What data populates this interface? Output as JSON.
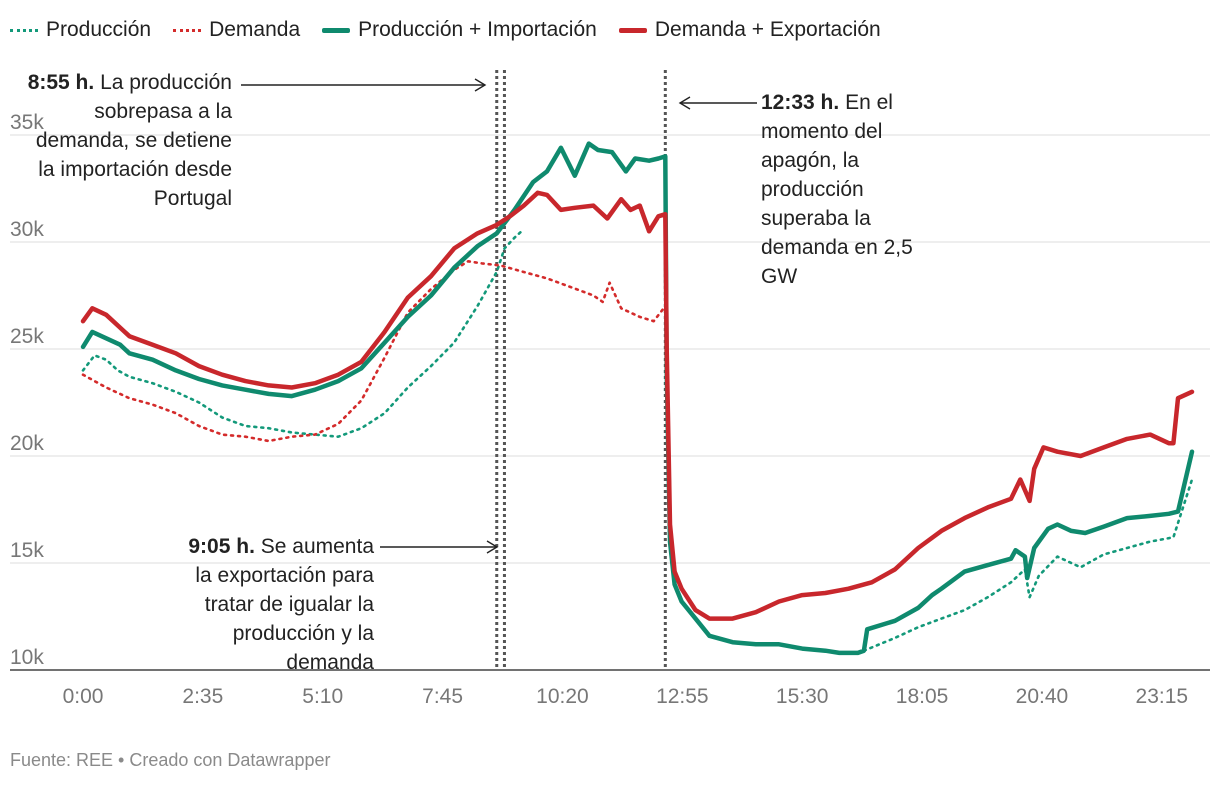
{
  "legend": [
    {
      "label": "Producción",
      "color": "#13997a",
      "style": "dotted"
    },
    {
      "label": "Demanda",
      "color": "#d42b2b",
      "style": "dotted"
    },
    {
      "label": "Producción + Importación",
      "color": "#0f8a6e",
      "style": "solid"
    },
    {
      "label": "Demanda + Exportación",
      "color": "#c8272c",
      "style": "solid"
    }
  ],
  "annotations": {
    "a855": {
      "time": "8:55 h.",
      "text": "La producción sobrepasa a la demanda, se detiene la importación desde Portugal"
    },
    "a905": {
      "time": "9:05 h.",
      "text": "Se aumenta la exportación para tratar de igualar la producción y la demanda"
    },
    "a1233": {
      "time": "12:33 h.",
      "text": "En el momento del apagón, la producción superaba la demanda en 2,5 GW"
    }
  },
  "source": "Fuente: REE • Creado con Datawrapper",
  "chart_data": {
    "type": "line",
    "title": "",
    "xlabel": "",
    "ylabel": "",
    "x_unit": "hours",
    "xlim": [
      0,
      24
    ],
    "ylim": [
      10000,
      35000
    ],
    "y_ticks": [
      {
        "value": 10000,
        "label": "10k"
      },
      {
        "value": 15000,
        "label": "15k"
      },
      {
        "value": 20000,
        "label": "20k"
      },
      {
        "value": 25000,
        "label": "25k"
      },
      {
        "value": 30000,
        "label": "30k"
      },
      {
        "value": 35000,
        "label": "35k"
      }
    ],
    "x_ticks": [
      {
        "value": 0,
        "label": "0:00"
      },
      {
        "value": 2.583,
        "label": "2:35"
      },
      {
        "value": 5.167,
        "label": "5:10"
      },
      {
        "value": 7.75,
        "label": "7:45"
      },
      {
        "value": 10.333,
        "label": "10:20"
      },
      {
        "value": 12.917,
        "label": "12:55"
      },
      {
        "value": 15.5,
        "label": "15:30"
      },
      {
        "value": 18.083,
        "label": "18:05"
      },
      {
        "value": 20.667,
        "label": "20:40"
      },
      {
        "value": 23.25,
        "label": "23:15"
      }
    ],
    "reference_lines": [
      {
        "x": 8.917,
        "label": "8:55"
      },
      {
        "x": 9.083,
        "label": "9:05"
      },
      {
        "x": 12.55,
        "label": "12:33"
      }
    ],
    "series": [
      {
        "name": "Producción",
        "color": "#13997a",
        "style": "dotted",
        "x": [
          0,
          0.25,
          0.5,
          0.75,
          1,
          1.5,
          2,
          2.5,
          3,
          3.5,
          4,
          4.5,
          5,
          5.5,
          6,
          6.5,
          7,
          7.5,
          8,
          8.5,
          8.917,
          9.083,
          9.3,
          9.5
        ],
        "y": [
          24000,
          24700,
          24500,
          24000,
          23700,
          23400,
          23000,
          22500,
          21800,
          21400,
          21300,
          21100,
          21000,
          20900,
          21300,
          22000,
          23200,
          24200,
          25300,
          27000,
          28600,
          29700,
          30200,
          30600
        ]
      },
      {
        "name": "Producción",
        "color": "#13997a",
        "style": "dotted",
        "x": [
          16.83,
          17.5,
          18,
          18.5,
          19,
          19.5,
          20,
          20.3,
          20.4,
          20.6,
          21,
          21.5,
          22,
          22.5,
          23,
          23.5,
          23.9
        ],
        "y": [
          10900,
          11500,
          12000,
          12400,
          12800,
          13400,
          14100,
          14700,
          13400,
          14400,
          15300,
          14800,
          15400,
          15700,
          16000,
          16200,
          18900
        ]
      },
      {
        "name": "Demanda",
        "color": "#d42b2b",
        "style": "dotted",
        "x": [
          0,
          0.5,
          1,
          1.5,
          2,
          2.5,
          3,
          3.5,
          4,
          4.5,
          5,
          5.5,
          6,
          6.5,
          7,
          7.5,
          8,
          8.3,
          8.6,
          9,
          9.5,
          10,
          10.5,
          11,
          11.2,
          11.35,
          11.6,
          12,
          12.3,
          12.55
        ],
        "y": [
          23800,
          23200,
          22700,
          22400,
          22000,
          21400,
          21000,
          20900,
          20700,
          20900,
          21000,
          21500,
          22600,
          24600,
          26700,
          27800,
          28700,
          29100,
          29000,
          28900,
          28600,
          28300,
          27900,
          27500,
          27200,
          28100,
          26900,
          26500,
          26300,
          27000
        ]
      },
      {
        "name": "Producción + Importación",
        "color": "#0f8a6e",
        "style": "solid",
        "x": [
          0,
          0.2,
          0.5,
          0.8,
          1,
          1.5,
          2,
          2.5,
          3,
          3.5,
          4,
          4.5,
          5,
          5.5,
          6,
          6.5,
          7,
          7.5,
          8,
          8.5,
          8.917,
          9.3,
          9.7,
          10,
          10.3,
          10.6,
          10.9,
          11.1,
          11.4,
          11.7,
          11.9,
          12.2,
          12.4,
          12.55,
          12.58,
          12.65,
          12.75,
          12.9,
          13.2,
          13.5,
          14,
          14.5,
          15,
          15.5,
          16,
          16.3,
          16.5,
          16.7,
          16.83,
          16.9,
          17.5,
          18,
          18.3,
          18.5,
          19,
          19.5,
          20,
          20.1,
          20.3,
          20.35,
          20.5,
          20.8,
          21,
          21.3,
          21.6,
          22,
          22.5,
          23,
          23.4,
          23.6,
          23.9
        ],
        "y": [
          25100,
          25800,
          25500,
          25200,
          24800,
          24500,
          24000,
          23600,
          23300,
          23100,
          22900,
          22800,
          23100,
          23500,
          24100,
          25300,
          26500,
          27500,
          28800,
          29800,
          30400,
          31500,
          32800,
          33300,
          34400,
          33100,
          34600,
          34300,
          34200,
          33300,
          33900,
          33800,
          33900,
          34000,
          24000,
          16000,
          14000,
          13200,
          12400,
          11600,
          11300,
          11200,
          11200,
          11000,
          10900,
          10800,
          10800,
          10800,
          10900,
          11900,
          12300,
          12900,
          13500,
          13800,
          14600,
          14900,
          15200,
          15600,
          15300,
          14300,
          15700,
          16600,
          16800,
          16500,
          16400,
          16700,
          17100,
          17200,
          17300,
          17400,
          20200
        ]
      },
      {
        "name": "Demanda + Exportación",
        "color": "#c8272c",
        "style": "solid",
        "x": [
          0,
          0.2,
          0.5,
          0.8,
          1,
          1.5,
          2,
          2.5,
          3,
          3.5,
          4,
          4.5,
          5,
          5.5,
          6,
          6.5,
          7,
          7.5,
          8,
          8.5,
          8.917,
          9.2,
          9.5,
          9.8,
          10,
          10.3,
          10.6,
          11,
          11.3,
          11.6,
          11.8,
          12,
          12.2,
          12.4,
          12.55,
          12.58,
          12.65,
          12.75,
          12.9,
          13.2,
          13.5,
          14,
          14.5,
          15,
          15.5,
          16,
          16.5,
          17,
          17.5,
          18,
          18.5,
          19,
          19.5,
          20,
          20.2,
          20.4,
          20.5,
          20.7,
          21,
          21.5,
          22,
          22.5,
          23,
          23.4,
          23.5,
          23.6,
          23.9
        ],
        "y": [
          26300,
          26900,
          26600,
          26000,
          25600,
          25200,
          24800,
          24200,
          23800,
          23500,
          23300,
          23200,
          23400,
          23800,
          24400,
          25800,
          27400,
          28400,
          29700,
          30400,
          30800,
          31200,
          31700,
          32300,
          32200,
          31500,
          31600,
          31700,
          31100,
          32000,
          31500,
          31700,
          30500,
          31200,
          31300,
          25000,
          16800,
          14600,
          13800,
          12800,
          12400,
          12400,
          12700,
          13200,
          13500,
          13600,
          13800,
          14100,
          14700,
          15700,
          16500,
          17100,
          17600,
          18000,
          18900,
          17900,
          19400,
          20400,
          20200,
          20000,
          20400,
          20800,
          21000,
          20600,
          20600,
          22700,
          23000
        ]
      }
    ]
  }
}
